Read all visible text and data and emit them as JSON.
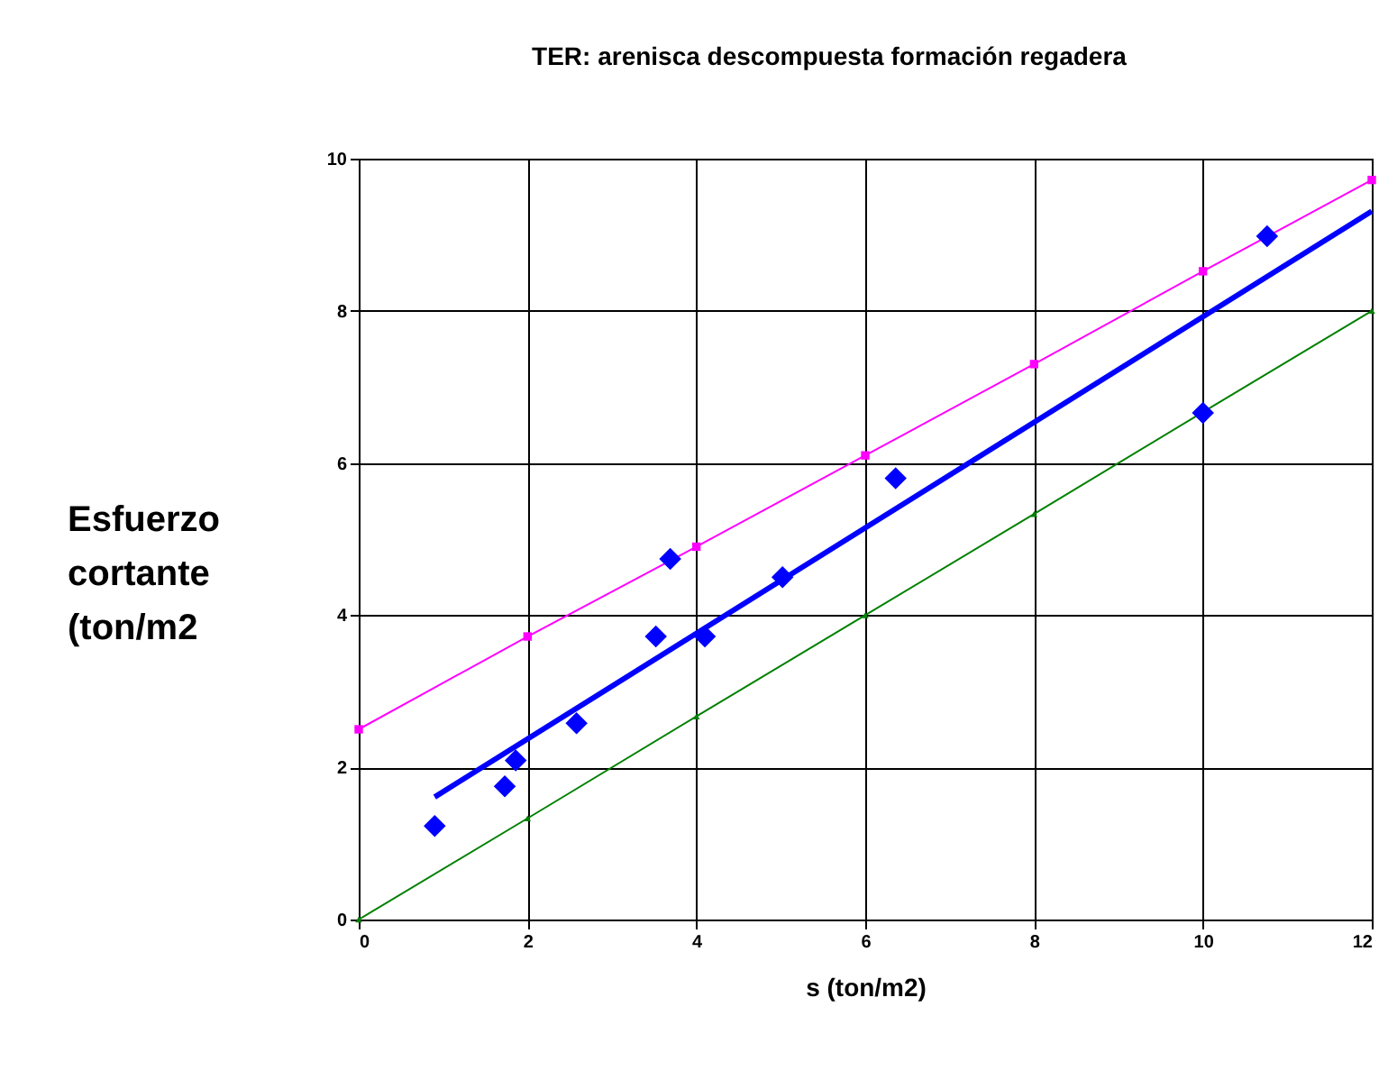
{
  "chart_data": {
    "type": "scatter",
    "title": "TER: arenisca descompuesta formación regadera",
    "xlabel": "s (ton/m2)",
    "ylabel": "Esfuerzo cortante (ton/m2",
    "xlim": [
      0,
      12
    ],
    "ylim": [
      0,
      10
    ],
    "xticks": [
      0,
      2,
      4,
      6,
      8,
      10,
      12
    ],
    "yticks": [
      0,
      2,
      4,
      6,
      8,
      10
    ],
    "grid": true,
    "series": [
      {
        "type": "line",
        "color": "#ff00ff",
        "marker": "square",
        "x": [
          0,
          2,
          4,
          6,
          8,
          10,
          12
        ],
        "values": [
          2.5,
          3.72,
          4.9,
          6.1,
          7.3,
          8.52,
          9.72
        ]
      },
      {
        "type": "line",
        "color": "#008000",
        "marker": "triangle",
        "x": [
          0,
          2,
          4,
          6,
          8,
          10,
          12
        ],
        "values": [
          0,
          1.33,
          2.67,
          4,
          5.33,
          6.67,
          8
        ]
      },
      {
        "type": "line",
        "color": "#0000ff",
        "marker": "none",
        "x": [
          0.9,
          12
        ],
        "values": [
          1.61,
          9.31
        ]
      },
      {
        "color": "#0000ff",
        "marker": "diamond",
        "x": [
          0.9,
          1.73,
          1.86,
          2.58,
          3.52,
          3.69,
          4.1,
          5.02,
          6.36,
          10,
          10.76
        ],
        "values": [
          1.23,
          1.75,
          2.09,
          2.58,
          3.72,
          4.74,
          3.72,
          4.5,
          5.8,
          6.66,
          8.98
        ]
      }
    ]
  }
}
